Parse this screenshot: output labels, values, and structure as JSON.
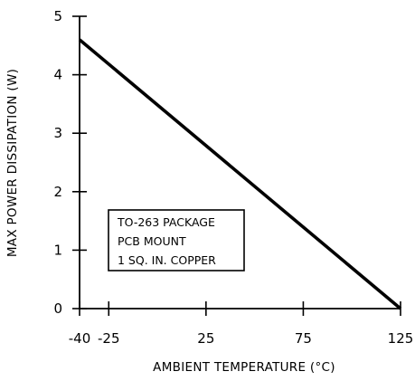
{
  "chart_data": {
    "type": "line",
    "title": "",
    "xlabel": "AMBIENT TEMPERATURE (°C)",
    "ylabel": "MAX POWER DISSIPATION (W)",
    "xlim": [
      -40,
      125
    ],
    "ylim": [
      0,
      5
    ],
    "x_ticks": [
      -40,
      -25,
      25,
      75,
      125
    ],
    "y_ticks": [
      0,
      1,
      2,
      3,
      4,
      5
    ],
    "x_tick_labels": [
      "-40",
      "-25",
      "25",
      "75",
      "125"
    ],
    "y_tick_labels": [
      "0",
      "1",
      "2",
      "3",
      "4",
      "5"
    ],
    "grid": false,
    "line_color": "#000000",
    "series": [
      {
        "x": [
          -40,
          125
        ],
        "y": [
          4.6,
          0
        ]
      }
    ],
    "annotation": {
      "lines": [
        "TO-263 PACKAGE",
        "PCB MOUNT",
        "1 SQ. IN. COPPER"
      ]
    }
  }
}
